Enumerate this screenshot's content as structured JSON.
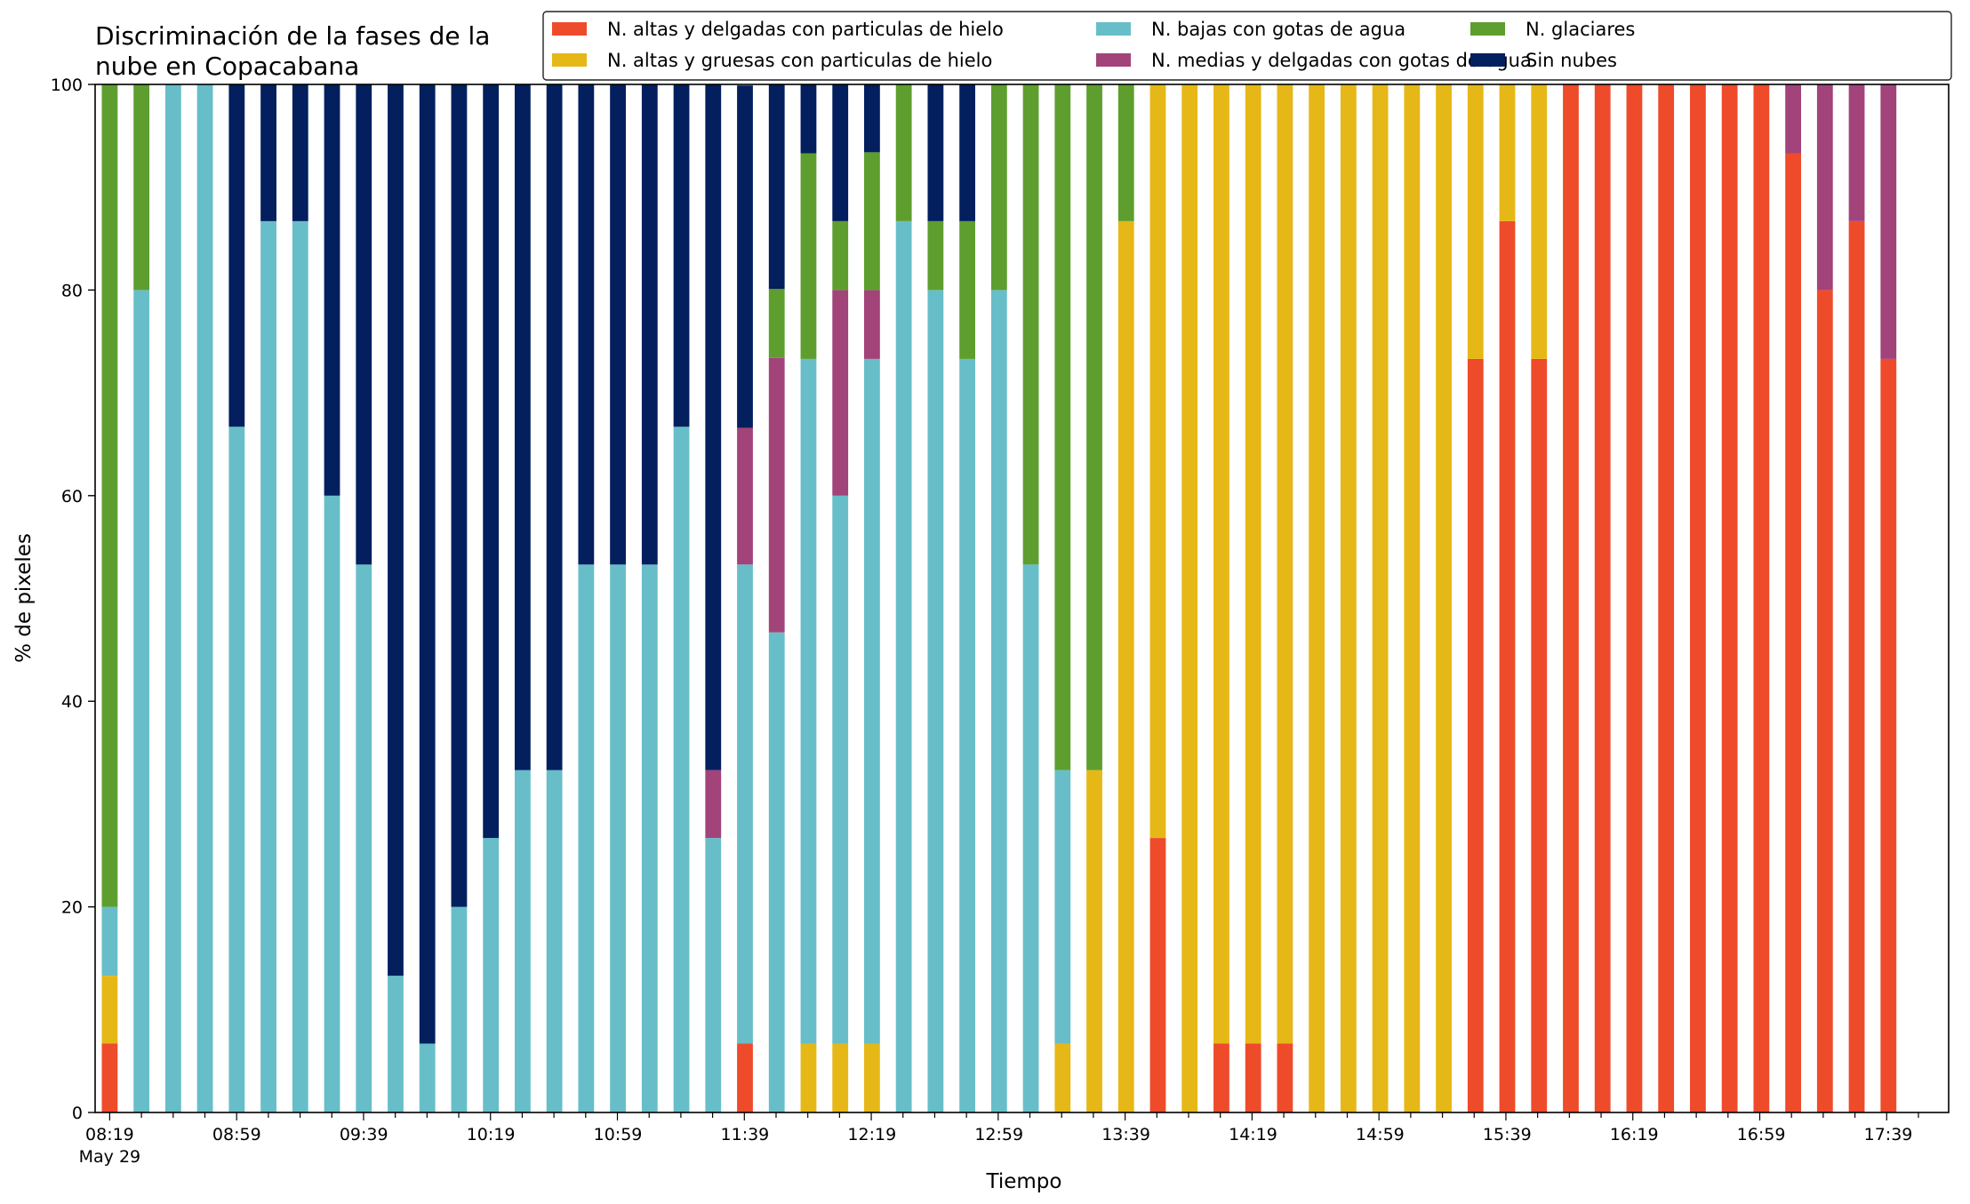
{
  "chart_data": {
    "type": "bar",
    "stacked": true,
    "title": "Discriminación de la fases de la\nnube en Copacabana",
    "xlabel": "Tiempo",
    "ylabel": "% de pixeles",
    "ylim": [
      0,
      100
    ],
    "yticks": [
      0,
      20,
      40,
      60,
      80,
      100
    ],
    "xtick_labels": [
      "08:19",
      "08:59",
      "09:39",
      "10:19",
      "10:59",
      "11:39",
      "12:19",
      "12:59",
      "13:39",
      "14:19",
      "14:59",
      "15:39",
      "16:19",
      "16:59",
      "17:39"
    ],
    "xtick_sublabel": "May 29",
    "legend_position": "top-right",
    "categories": [
      "08:19",
      "08:29",
      "08:39",
      "08:49",
      "08:59",
      "09:09",
      "09:19",
      "09:29",
      "09:39",
      "09:49",
      "09:59",
      "10:09",
      "10:19",
      "10:29",
      "10:39",
      "10:49",
      "10:59",
      "11:09",
      "11:19",
      "11:29",
      "11:39",
      "11:49",
      "11:59",
      "12:09",
      "12:19",
      "12:29",
      "12:39",
      "12:49",
      "12:59",
      "13:09",
      "13:19",
      "13:29",
      "13:39",
      "13:49",
      "13:59",
      "14:09",
      "14:19",
      "14:29",
      "14:39",
      "14:49",
      "14:59",
      "15:09",
      "15:19",
      "15:29",
      "15:39",
      "15:49",
      "15:59",
      "16:09",
      "16:19",
      "16:29",
      "16:39",
      "16:49",
      "16:59",
      "17:09",
      "17:19",
      "17:29",
      "17:39",
      "17:49"
    ],
    "series": [
      {
        "name": "N. altas y delgadas con particulas de hielo",
        "color": "#ee4b2b",
        "values": [
          6.7,
          0,
          0,
          0,
          0,
          0,
          0,
          0,
          0,
          0,
          0,
          0,
          0,
          0,
          0,
          0,
          0,
          0,
          0,
          0,
          6.7,
          0,
          0,
          0,
          0,
          0,
          0,
          0,
          0,
          0,
          0,
          0,
          0,
          26.7,
          0,
          6.7,
          6.7,
          6.7,
          0,
          0,
          0,
          0,
          0,
          73.3,
          86.7,
          73.3,
          100,
          100,
          100,
          100,
          100,
          100,
          100,
          93.3,
          80,
          86.7,
          73.3,
          0
        ]
      },
      {
        "name": "N. altas y gruesas con particulas de hielo",
        "color": "#e6b817",
        "values": [
          6.6,
          0,
          0,
          0,
          0,
          0,
          0,
          0,
          0,
          0,
          0,
          0,
          0,
          0,
          0,
          0,
          0,
          0,
          0,
          0,
          0,
          0,
          6.7,
          6.7,
          6.7,
          0,
          0,
          0,
          0,
          0,
          6.7,
          33.3,
          86.7,
          73.3,
          100,
          93.3,
          93.3,
          93.3,
          100,
          100,
          100,
          100,
          100,
          26.7,
          13.3,
          26.7,
          0,
          0,
          0,
          0,
          0,
          0,
          0,
          0,
          0,
          0,
          0,
          0
        ]
      },
      {
        "name": "N. bajas con gotas de agua",
        "color": "#67bec9",
        "values": [
          6.7,
          80,
          100,
          100,
          66.7,
          86.7,
          86.7,
          60,
          53.3,
          13.3,
          6.7,
          20,
          26.7,
          33.3,
          33.3,
          53.3,
          53.3,
          53.3,
          66.7,
          26.7,
          46.6,
          46.7,
          66.6,
          53.3,
          66.6,
          86.7,
          80,
          73.3,
          80,
          53.3,
          26.6,
          0,
          0,
          0,
          0,
          0,
          0,
          0,
          0,
          0,
          0,
          0,
          0,
          0,
          0,
          0,
          0,
          0,
          0,
          0,
          0,
          0,
          0,
          0,
          0,
          0,
          0,
          0
        ]
      },
      {
        "name": "N. medias y delgadas con gotas de agua",
        "color": "#a2437a",
        "values": [
          0,
          0,
          0,
          0,
          0,
          0,
          0,
          0,
          0,
          0,
          0,
          0,
          0,
          0,
          0,
          0,
          0,
          0,
          0,
          6.6,
          13.3,
          26.7,
          0,
          20,
          6.7,
          0,
          0,
          0,
          0,
          0,
          0,
          0,
          0,
          0,
          0,
          0,
          0,
          0,
          0,
          0,
          0,
          0,
          0,
          0,
          0,
          0,
          0,
          0,
          0,
          0,
          0,
          0,
          0,
          6.7,
          20,
          13.3,
          26.7,
          0
        ]
      },
      {
        "name": "N. glaciares",
        "color": "#5e9e2e",
        "values": [
          80,
          20,
          0,
          0,
          0,
          0,
          0,
          0,
          0,
          0,
          0,
          0,
          0,
          0,
          0,
          0,
          0,
          0,
          0,
          0,
          0,
          6.7,
          20,
          6.7,
          13.4,
          13.3,
          6.7,
          13.4,
          20,
          46.7,
          66.7,
          66.7,
          13.3,
          0,
          0,
          0,
          0,
          0,
          0,
          0,
          0,
          0,
          0,
          0,
          0,
          0,
          0,
          0,
          0,
          0,
          0,
          0,
          0,
          0,
          0,
          0,
          0,
          0
        ]
      },
      {
        "name": "Sin nubes",
        "color": "#031f5e",
        "values": [
          0,
          0,
          0,
          0,
          33.3,
          13.3,
          13.3,
          40,
          46.7,
          86.7,
          93.3,
          80,
          73.3,
          66.7,
          66.7,
          46.7,
          46.7,
          46.7,
          33.3,
          66.7,
          33.3,
          20,
          6.7,
          13.3,
          6.6,
          0,
          13.3,
          13.3,
          0,
          0,
          0,
          0,
          0,
          0,
          0,
          0,
          0,
          0,
          0,
          0,
          0,
          0,
          0,
          0,
          0,
          0,
          0,
          0,
          0,
          0,
          0,
          0,
          0,
          0,
          0,
          0,
          0,
          0
        ]
      }
    ]
  }
}
